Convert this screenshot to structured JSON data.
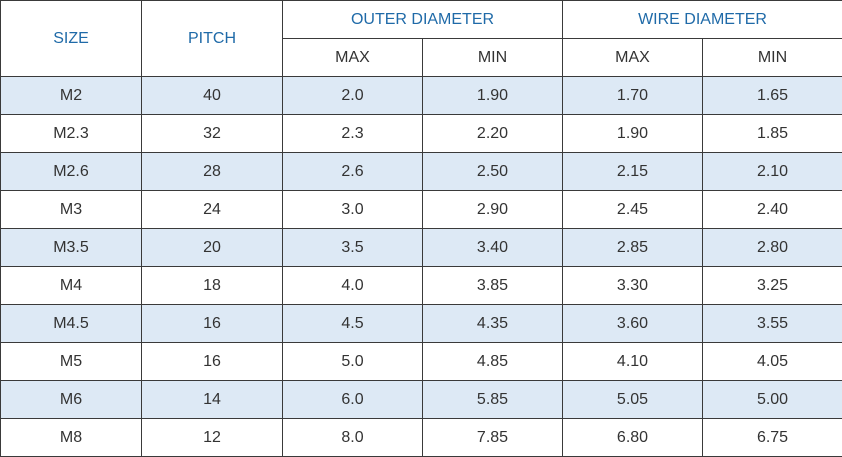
{
  "headers": {
    "size": "SIZE",
    "pitch": "PITCH",
    "outer_diameter": "OUTER DIAMETER",
    "wire_diameter": "WIRE DIAMETER",
    "outer_max": "MAX",
    "outer_min": "MIN",
    "wire_max": "MAX",
    "wire_min": "MIN"
  },
  "colors": {
    "header_text": "#1f6aa8",
    "shaded_row": "#dde9f5",
    "border": "#3a3a3a",
    "body_text": "#333333"
  },
  "rows": [
    {
      "size": "M2",
      "pitch": "40",
      "outer_max": "2.0",
      "outer_min": "1.90",
      "wire_max": "1.70",
      "wire_min": "1.65"
    },
    {
      "size": "M2.3",
      "pitch": "32",
      "outer_max": "2.3",
      "outer_min": "2.20",
      "wire_max": "1.90",
      "wire_min": "1.85"
    },
    {
      "size": "M2.6",
      "pitch": "28",
      "outer_max": "2.6",
      "outer_min": "2.50",
      "wire_max": "2.15",
      "wire_min": "2.10"
    },
    {
      "size": "M3",
      "pitch": "24",
      "outer_max": "3.0",
      "outer_min": "2.90",
      "wire_max": "2.45",
      "wire_min": "2.40"
    },
    {
      "size": "M3.5",
      "pitch": "20",
      "outer_max": "3.5",
      "outer_min": "3.40",
      "wire_max": "2.85",
      "wire_min": "2.80"
    },
    {
      "size": "M4",
      "pitch": "18",
      "outer_max": "4.0",
      "outer_min": "3.85",
      "wire_max": "3.30",
      "wire_min": "3.25"
    },
    {
      "size": "M4.5",
      "pitch": "16",
      "outer_max": "4.5",
      "outer_min": "4.35",
      "wire_max": "3.60",
      "wire_min": "3.55"
    },
    {
      "size": "M5",
      "pitch": "16",
      "outer_max": "5.0",
      "outer_min": "4.85",
      "wire_max": "4.10",
      "wire_min": "4.05"
    },
    {
      "size": "M6",
      "pitch": "14",
      "outer_max": "6.0",
      "outer_min": "5.85",
      "wire_max": "5.05",
      "wire_min": "5.00"
    },
    {
      "size": "M8",
      "pitch": "12",
      "outer_max": "8.0",
      "outer_min": "7.85",
      "wire_max": "6.80",
      "wire_min": "6.75"
    }
  ]
}
